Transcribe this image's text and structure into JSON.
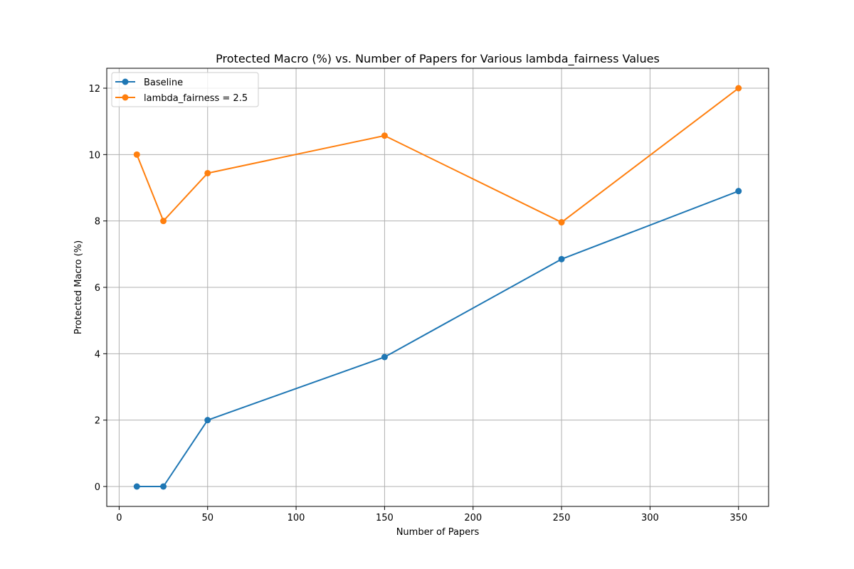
{
  "chart_data": {
    "type": "line",
    "title": "Protected Macro (%) vs. Number of Papers for Various lambda_fairness Values",
    "xlabel": "Number of Papers",
    "ylabel": "Protected Macro (%)",
    "x": [
      10,
      25,
      50,
      150,
      250,
      350
    ],
    "xlim": [
      -7,
      367
    ],
    "ylim": [
      -0.6,
      12.6
    ],
    "xticks": [
      0,
      50,
      100,
      150,
      200,
      250,
      300,
      350
    ],
    "yticks": [
      0,
      2,
      4,
      6,
      8,
      10,
      12
    ],
    "grid": true,
    "legend_position": "upper-left",
    "marker": "circle",
    "series": [
      {
        "name": "Baseline",
        "color": "#1f77b4",
        "values": [
          0,
          0,
          2.0,
          3.9,
          6.85,
          8.9
        ]
      },
      {
        "name": "lambda_fairness = 2.5",
        "color": "#ff7f0e",
        "values": [
          10.0,
          8.0,
          9.44,
          10.57,
          7.96,
          12.0
        ]
      }
    ]
  }
}
